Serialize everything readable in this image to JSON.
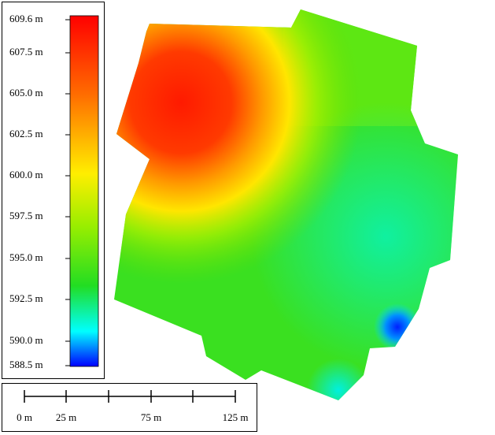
{
  "legend": {
    "labels": [
      "609.6 m",
      "607.5 m",
      "605.0 m",
      "602.5 m",
      "600.0 m",
      "597.5 m",
      "595.0 m",
      "592.5 m",
      "590.0 m",
      "588.5 m"
    ]
  },
  "scale_bar": {
    "labels": [
      "0 m",
      "25 m",
      "75 m",
      "125 m"
    ]
  }
}
